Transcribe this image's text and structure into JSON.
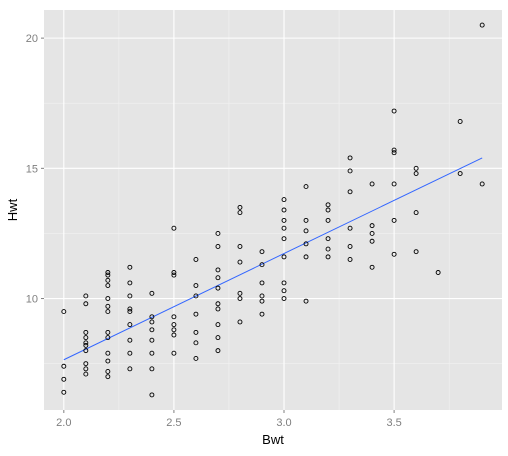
{
  "chart_data": {
    "type": "scatter",
    "xlabel": "Bwt",
    "ylabel": "Hwt",
    "xlim": [
      1.91,
      3.99
    ],
    "ylim": [
      5.72,
      21.08
    ],
    "x_ticks": [
      2.0,
      2.5,
      3.0,
      3.5
    ],
    "x_tick_labels": [
      "2.0",
      "2.5",
      "3.0",
      "3.5"
    ],
    "y_ticks": [
      10,
      15,
      20
    ],
    "y_tick_labels": [
      "10",
      "15",
      "20"
    ],
    "grid": true,
    "colors": {
      "panel_background": "#e5e5e5",
      "grid_major": "#ffffff",
      "grid_minor": "#f2f2f2",
      "points": "#000000",
      "fit_line": "#3366ff",
      "tick_label": "#7f7f7f"
    },
    "fit_line": {
      "x": [
        2.0,
        3.9
      ],
      "y": [
        7.65,
        15.4
      ]
    },
    "points": [
      [
        2.0,
        9.5
      ],
      [
        2.0,
        7.4
      ],
      [
        2.0,
        6.9
      ],
      [
        2.0,
        6.4
      ],
      [
        2.1,
        10.1
      ],
      [
        2.1,
        9.8
      ],
      [
        2.1,
        8.7
      ],
      [
        2.1,
        8.5
      ],
      [
        2.1,
        8.3
      ],
      [
        2.1,
        8.2
      ],
      [
        2.1,
        8.0
      ],
      [
        2.1,
        7.5
      ],
      [
        2.1,
        7.3
      ],
      [
        2.1,
        7.1
      ],
      [
        2.2,
        11.0
      ],
      [
        2.2,
        10.9
      ],
      [
        2.2,
        10.7
      ],
      [
        2.2,
        10.5
      ],
      [
        2.2,
        10.0
      ],
      [
        2.2,
        9.7
      ],
      [
        2.2,
        9.5
      ],
      [
        2.2,
        8.7
      ],
      [
        2.2,
        8.5
      ],
      [
        2.2,
        7.9
      ],
      [
        2.2,
        7.6
      ],
      [
        2.2,
        7.2
      ],
      [
        2.2,
        7.0
      ],
      [
        2.3,
        11.2
      ],
      [
        2.3,
        10.6
      ],
      [
        2.3,
        10.1
      ],
      [
        2.3,
        9.6
      ],
      [
        2.3,
        9.5
      ],
      [
        2.3,
        9.0
      ],
      [
        2.3,
        8.4
      ],
      [
        2.3,
        7.9
      ],
      [
        2.3,
        7.3
      ],
      [
        2.4,
        10.2
      ],
      [
        2.4,
        9.3
      ],
      [
        2.4,
        9.1
      ],
      [
        2.4,
        8.8
      ],
      [
        2.4,
        8.4
      ],
      [
        2.4,
        7.9
      ],
      [
        2.4,
        7.3
      ],
      [
        2.4,
        6.3
      ],
      [
        2.5,
        12.7
      ],
      [
        2.5,
        11.0
      ],
      [
        2.5,
        10.9
      ],
      [
        2.5,
        9.3
      ],
      [
        2.5,
        9.0
      ],
      [
        2.5,
        8.8
      ],
      [
        2.5,
        8.6
      ],
      [
        2.5,
        7.9
      ],
      [
        2.6,
        11.5
      ],
      [
        2.6,
        10.5
      ],
      [
        2.6,
        10.1
      ],
      [
        2.6,
        9.4
      ],
      [
        2.6,
        8.7
      ],
      [
        2.6,
        8.3
      ],
      [
        2.6,
        7.7
      ],
      [
        2.7,
        12.5
      ],
      [
        2.7,
        12.0
      ],
      [
        2.7,
        11.1
      ],
      [
        2.7,
        10.8
      ],
      [
        2.7,
        10.4
      ],
      [
        2.7,
        9.8
      ],
      [
        2.7,
        9.6
      ],
      [
        2.7,
        9.0
      ],
      [
        2.7,
        8.5
      ],
      [
        2.7,
        8.0
      ],
      [
        2.8,
        13.5
      ],
      [
        2.8,
        13.3
      ],
      [
        2.8,
        12.0
      ],
      [
        2.8,
        11.4
      ],
      [
        2.8,
        10.2
      ],
      [
        2.8,
        10.0
      ],
      [
        2.8,
        9.1
      ],
      [
        2.9,
        11.8
      ],
      [
        2.9,
        11.3
      ],
      [
        2.9,
        10.6
      ],
      [
        2.9,
        10.1
      ],
      [
        2.9,
        9.9
      ],
      [
        2.9,
        9.4
      ],
      [
        3.0,
        13.8
      ],
      [
        3.0,
        13.4
      ],
      [
        3.0,
        13.0
      ],
      [
        3.0,
        12.7
      ],
      [
        3.0,
        12.3
      ],
      [
        3.0,
        11.6
      ],
      [
        3.0,
        10.6
      ],
      [
        3.0,
        10.3
      ],
      [
        3.0,
        10.0
      ],
      [
        3.1,
        14.3
      ],
      [
        3.1,
        13.0
      ],
      [
        3.1,
        12.6
      ],
      [
        3.1,
        12.1
      ],
      [
        3.1,
        11.6
      ],
      [
        3.1,
        9.9
      ],
      [
        3.2,
        13.6
      ],
      [
        3.2,
        13.4
      ],
      [
        3.2,
        13.0
      ],
      [
        3.2,
        12.3
      ],
      [
        3.2,
        11.9
      ],
      [
        3.2,
        11.6
      ],
      [
        3.3,
        15.4
      ],
      [
        3.3,
        14.9
      ],
      [
        3.3,
        14.1
      ],
      [
        3.3,
        12.7
      ],
      [
        3.3,
        12.0
      ],
      [
        3.3,
        11.5
      ],
      [
        3.4,
        14.4
      ],
      [
        3.4,
        12.8
      ],
      [
        3.4,
        12.5
      ],
      [
        3.4,
        12.2
      ],
      [
        3.4,
        11.2
      ],
      [
        3.5,
        17.2
      ],
      [
        3.5,
        15.7
      ],
      [
        3.5,
        15.6
      ],
      [
        3.5,
        14.4
      ],
      [
        3.5,
        13.0
      ],
      [
        3.5,
        11.7
      ],
      [
        3.6,
        15.0
      ],
      [
        3.6,
        14.8
      ],
      [
        3.6,
        13.3
      ],
      [
        3.6,
        11.8
      ],
      [
        3.7,
        11.0
      ],
      [
        3.8,
        16.8
      ],
      [
        3.8,
        14.8
      ],
      [
        3.9,
        20.5
      ],
      [
        3.9,
        14.4
      ]
    ]
  }
}
